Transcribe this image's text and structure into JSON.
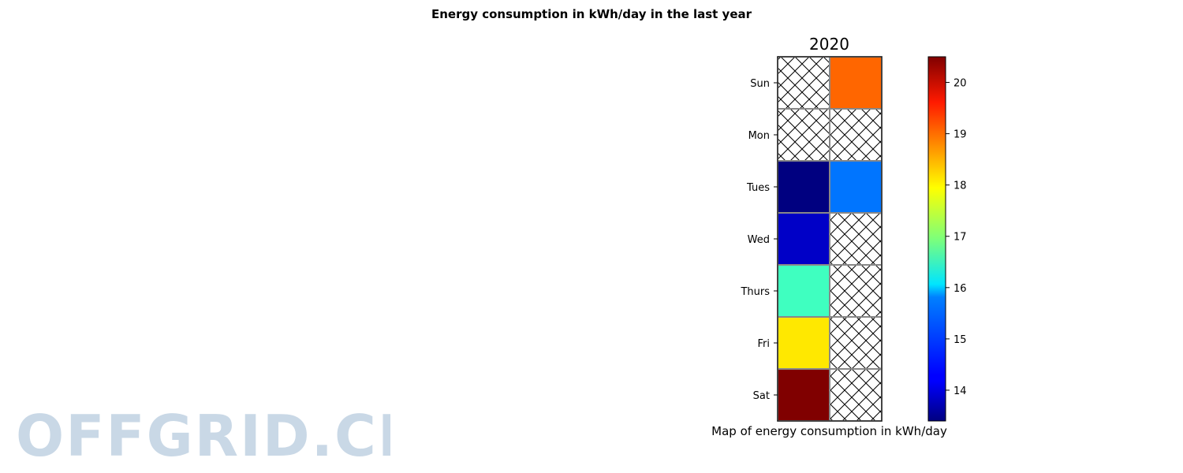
{
  "figure_title": "Energy consumption in kWh/day in the last year",
  "watermark": "OFFGRID.CH",
  "chart_data": {
    "type": "heatmap",
    "title": "2020",
    "xlabel": "Map of energy consumption in kWh/day",
    "rows": [
      "Sun",
      "Mon",
      "Tues",
      "Wed",
      "Thurs",
      "Fri",
      "Sat"
    ],
    "columns": 2,
    "values": [
      [
        null,
        18.9
      ],
      [
        null,
        null
      ],
      [
        13.4,
        15.1
      ],
      [
        13.9,
        null
      ],
      [
        16.5,
        null
      ],
      [
        18.0,
        null
      ],
      [
        20.5,
        null
      ]
    ],
    "missing_style": "cross-hatch",
    "colormap": "jet",
    "vmin": 13.4,
    "vmax": 20.5,
    "colorbar_ticks": [
      14,
      15,
      16,
      17,
      18,
      19,
      20
    ]
  }
}
